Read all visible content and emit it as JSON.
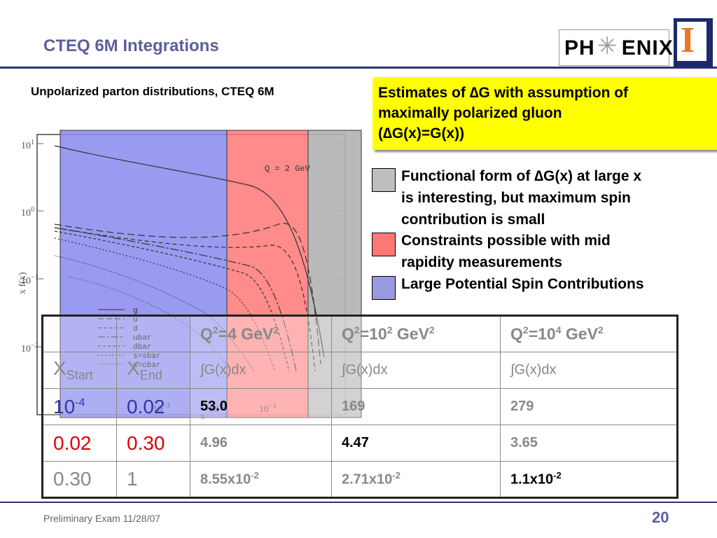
{
  "slide": {
    "title": "CTEQ 6M Integrations",
    "footer": "Preliminary Exam 11/28/07",
    "page_number": "20"
  },
  "logos": {
    "phenix_left": "PH",
    "phenix_right": "ENIX",
    "shield_letter": "I"
  },
  "plot": {
    "subtitle": "Unpolarized parton distributions, CTEQ 6M",
    "q_label": "Q = 2 GeV",
    "ylabel": "x f(x)",
    "xlabel": "x",
    "ytick_labels": [
      "10",
      "10",
      "10",
      "10"
    ],
    "ytick_exps": [
      "1",
      "0",
      "−1",
      "−2"
    ],
    "xtick_labels": [
      "10",
      "10",
      "10"
    ],
    "xtick_exps": [
      "−3",
      "−2",
      "−1"
    ],
    "legend": [
      "g",
      "u",
      "d",
      "ubar",
      "dbar",
      "s=sbar",
      "c=cbar"
    ],
    "colors": {
      "blue_band": "#8888ee",
      "red_band": "#ff7777",
      "gray_band": "#b3b3b3"
    }
  },
  "estimate_box": {
    "line1": "Estimates of ∆G with assumption of",
    "line2": "maximally polarized gluon",
    "line3": "(∆G(x)=G(x))"
  },
  "legend": [
    {
      "color": "#bebebe",
      "lines": [
        "Functional form of ∆G(x) at large x",
        "is interesting, but maximum spin",
        "contribution is small"
      ]
    },
    {
      "color": "#ff7777",
      "lines": [
        "Constraints possible with mid",
        "rapidity measurements"
      ]
    },
    {
      "color": "#9999dd",
      "lines": [
        "Large Potential Spin Contributions"
      ]
    }
  ],
  "table": {
    "q_headers": [
      {
        "pre": "Q",
        "sup1": "2",
        "mid": "=4 GeV",
        "sup2": "2"
      },
      {
        "pre": "Q",
        "sup1": "2",
        "mid": "=10",
        "sup_mid": "2",
        "post": " GeV",
        "sup2": "2"
      },
      {
        "pre": "Q",
        "sup1": "2",
        "mid": "=10",
        "sup_mid": "4",
        "post": " GeV",
        "sup2": "2"
      }
    ],
    "x_start_label": "X",
    "x_start_sub": "Start",
    "x_end_label": "X",
    "x_end_sub": "End",
    "integral_label": "∫G(x)dx",
    "rows": [
      {
        "xstart_base": "10",
        "xstart_exp": "-4",
        "xend": "0.02",
        "v1": "53.0",
        "v2": "169",
        "v3": "279"
      },
      {
        "xstart": "0.02",
        "xend": "0.30",
        "v1": "4.96",
        "v2": "4.47",
        "v3": "3.65"
      },
      {
        "xstart": "0.30",
        "xend": "1",
        "v1_base": "8.55x10",
        "v1_exp": "-2",
        "v2_base": "2.71x10",
        "v2_exp": "-2",
        "v3_base": "1.1x10",
        "v3_exp": "-2"
      }
    ]
  }
}
